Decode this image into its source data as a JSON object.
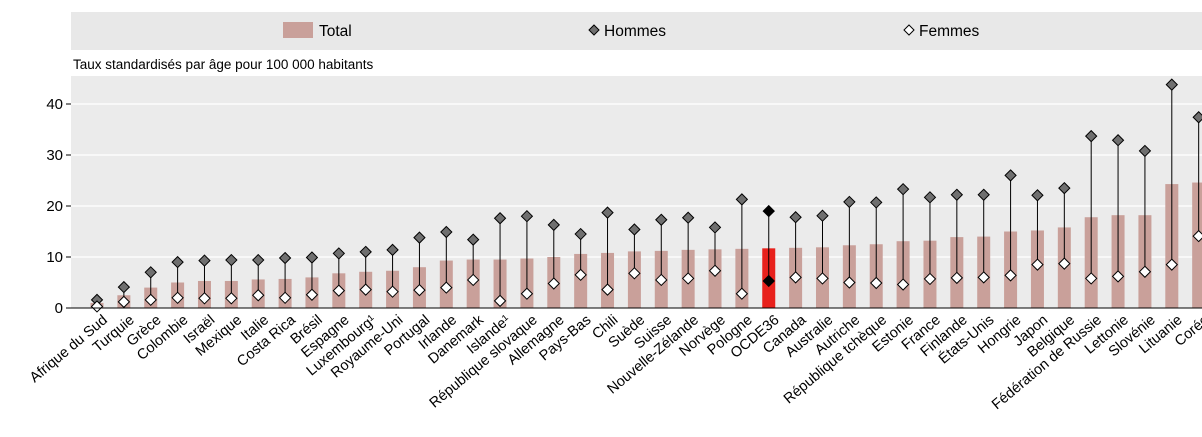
{
  "chart_data": {
    "type": "bar",
    "subtitle": "Taux standardisés par âge pour 100 000 habitants",
    "ylim": [
      0,
      47
    ],
    "yticks": [
      0,
      10,
      20,
      30,
      40
    ],
    "grid": true,
    "legend_placement": "top",
    "legend": {
      "total": "Total",
      "hommes": "Hommes",
      "femmes": "Femmes"
    },
    "colors": {
      "total": "#c9a09a",
      "highlight": "#e8211c",
      "hommes_marker": "#6f6f6f",
      "femmes_marker": "#ffffff",
      "legend_band": "#e8e8e8",
      "plot_bg": "#ebebeb"
    },
    "highlight_category": "OCDE36",
    "categories": [
      "Afrique du Sud",
      "Turquie",
      "Grèce",
      "Colombie",
      "Israël",
      "Mexique",
      "Italie",
      "Costa Rica",
      "Brésil",
      "Espagne",
      "Luxembourg¹",
      "Royaume-Uni",
      "Portugal",
      "Irlande",
      "Danemark",
      "Islande¹",
      "République slovaque",
      "Allemagne",
      "Pays-Bas",
      "Chili",
      "Suède",
      "Suisse",
      "Nouvelle-Zélande",
      "Norvège",
      "Pologne",
      "OCDE36",
      "Canada",
      "Australie",
      "Autriche",
      "République tchèque",
      "Estonie",
      "France",
      "Finlande",
      "États-Unis",
      "Hongrie",
      "Japon",
      "Belgique",
      "Fédération de Russie",
      "Lettonie",
      "Slovénie",
      "Lituanie",
      "Corée"
    ],
    "series": [
      {
        "name": "Total",
        "values": [
          1.0,
          2.5,
          4.0,
          5.0,
          5.3,
          5.3,
          5.6,
          5.7,
          6.0,
          6.8,
          7.1,
          7.3,
          8.0,
          9.3,
          9.5,
          9.5,
          9.7,
          10.0,
          10.6,
          10.8,
          11.1,
          11.2,
          11.4,
          11.5,
          11.6,
          11.7,
          11.8,
          11.9,
          12.3,
          12.5,
          13.1,
          13.2,
          13.9,
          14.0,
          15.0,
          15.2,
          15.8,
          17.8,
          18.2,
          18.2,
          24.3,
          24.6
        ]
      },
      {
        "name": "Hommes",
        "values": [
          1.6,
          4.1,
          7.0,
          9.0,
          9.3,
          9.4,
          9.4,
          9.8,
          9.9,
          10.7,
          11.0,
          11.4,
          13.8,
          14.9,
          13.4,
          17.6,
          18.0,
          16.3,
          14.5,
          18.7,
          15.4,
          17.3,
          17.7,
          15.8,
          21.3,
          19.0,
          17.8,
          18.1,
          20.8,
          20.7,
          23.3,
          21.7,
          22.2,
          22.2,
          26.0,
          22.1,
          23.5,
          33.7,
          32.9,
          30.8,
          43.8,
          37.4
        ]
      },
      {
        "name": "Femmes",
        "values": [
          0.3,
          1.2,
          1.6,
          2.0,
          1.9,
          1.9,
          2.5,
          2.0,
          2.6,
          3.4,
          3.6,
          3.2,
          3.5,
          4.0,
          5.5,
          1.4,
          2.8,
          4.8,
          6.5,
          3.6,
          6.8,
          5.5,
          5.8,
          7.3,
          2.8,
          5.3,
          6.0,
          5.8,
          5.0,
          4.9,
          4.6,
          5.7,
          5.9,
          6.0,
          6.4,
          8.5,
          8.7,
          5.8,
          6.2,
          7.1,
          8.5,
          14.1
        ]
      }
    ]
  }
}
